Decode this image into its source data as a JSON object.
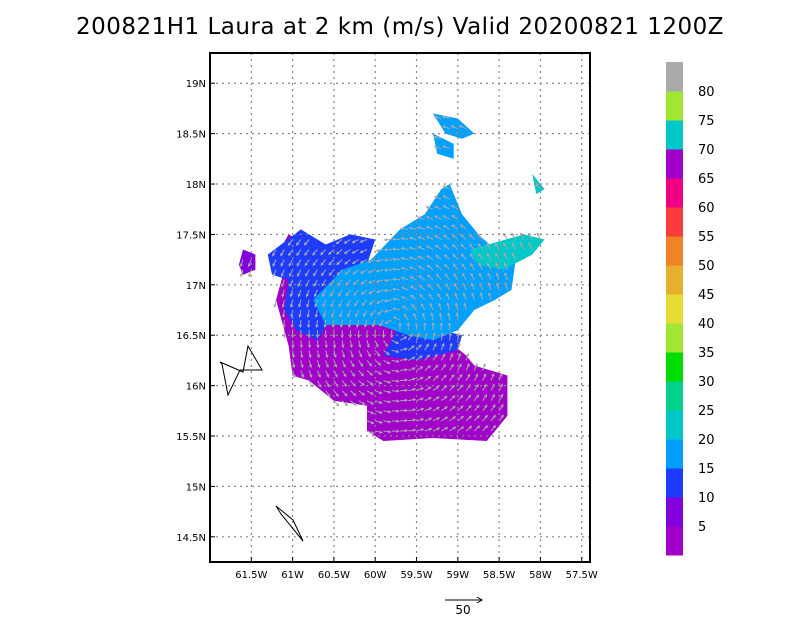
{
  "chart_data": {
    "type": "heatmap",
    "title": "200821H1 Laura at 2 km (m/s) Valid 20200821 1200Z",
    "x_ticks": [
      -61.5,
      -61,
      -60.5,
      -60,
      -59.5,
      -59,
      -58.5,
      -58,
      -57.5
    ],
    "x_tick_labels": [
      "61.5W",
      "61W",
      "60.5W",
      "60W",
      "59.5W",
      "59W",
      "58.5W",
      "58W",
      "57.5W"
    ],
    "y_ticks": [
      14.5,
      15,
      15.5,
      16,
      16.5,
      17,
      17.5,
      18,
      18.5,
      19
    ],
    "y_tick_labels": [
      "14.5N",
      "15N",
      "15.5N",
      "16N",
      "16.5N",
      "17N",
      "17.5N",
      "18N",
      "18.5N",
      "19N"
    ],
    "xlim": [
      -62.0,
      -57.4
    ],
    "ylim": [
      14.25,
      19.3
    ],
    "grid": true,
    "colorbar": {
      "levels": [
        5,
        10,
        15,
        20,
        25,
        30,
        35,
        40,
        45,
        50,
        55,
        60,
        65,
        70,
        75,
        80
      ],
      "labels": [
        "5",
        "10",
        "15",
        "20",
        "25",
        "30",
        "35",
        "40",
        "45",
        "50",
        "55",
        "60",
        "65",
        "70",
        "75",
        "80"
      ],
      "colors": [
        "#a000c8",
        "#8200dc",
        "#1e3cff",
        "#00a0ff",
        "#00c8c8",
        "#00d28c",
        "#00dc00",
        "#a0e632",
        "#e6dc32",
        "#e6af2d",
        "#f08228",
        "#fa3c3c",
        "#f00082",
        "#a000c8",
        "#00c8c8",
        "#a0e632",
        "#aaaaaa"
      ]
    },
    "wind_regions": [
      {
        "level": "<5",
        "color": "#a000c8",
        "polygon": [
          [
            -61.05,
            17.5
          ],
          [
            -60.7,
            17.35
          ],
          [
            -60.3,
            17.2
          ],
          [
            -59.7,
            16.9
          ],
          [
            -59.2,
            16.5
          ],
          [
            -58.9,
            16.3
          ],
          [
            -58.8,
            16.2
          ],
          [
            -58.4,
            16.1
          ],
          [
            -58.4,
            15.7
          ],
          [
            -58.55,
            15.55
          ],
          [
            -58.65,
            15.45
          ],
          [
            -59.3,
            15.48
          ],
          [
            -59.9,
            15.45
          ],
          [
            -60.1,
            15.55
          ],
          [
            -60.1,
            15.8
          ],
          [
            -60.5,
            15.85
          ],
          [
            -60.8,
            16.05
          ],
          [
            -61.0,
            16.1
          ],
          [
            -61.05,
            16.4
          ],
          [
            -61.15,
            16.7
          ],
          [
            -61.2,
            16.85
          ],
          [
            -61.1,
            17.15
          ],
          [
            -61.15,
            17.35
          ]
        ]
      },
      {
        "level": "5-10",
        "color": "#8200dc",
        "polygon": [
          [
            -61.6,
            17.35
          ],
          [
            -61.45,
            17.3
          ],
          [
            -61.45,
            17.15
          ],
          [
            -61.6,
            17.1
          ],
          [
            -61.65,
            17.2
          ]
        ]
      },
      {
        "level": "10-15",
        "color": "#1e3cff",
        "polygon": [
          [
            -61.3,
            17.3
          ],
          [
            -60.9,
            17.55
          ],
          [
            -60.6,
            17.4
          ],
          [
            -60.3,
            17.5
          ],
          [
            -60.0,
            17.45
          ],
          [
            -60.2,
            16.95
          ],
          [
            -60.55,
            16.65
          ],
          [
            -60.7,
            16.45
          ],
          [
            -60.95,
            16.55
          ],
          [
            -61.1,
            16.75
          ],
          [
            -61.05,
            17.05
          ],
          [
            -61.25,
            17.1
          ]
        ]
      },
      {
        "level": "10-15",
        "color": "#1e3cff",
        "polygon": [
          [
            -59.7,
            16.6
          ],
          [
            -59.2,
            16.55
          ],
          [
            -58.95,
            16.5
          ],
          [
            -59.0,
            16.35
          ],
          [
            -59.5,
            16.25
          ],
          [
            -59.9,
            16.3
          ]
        ]
      },
      {
        "level": "15-20",
        "color": "#00a0ff",
        "polygon": [
          [
            -60.75,
            16.85
          ],
          [
            -60.4,
            17.15
          ],
          [
            -60.05,
            17.25
          ],
          [
            -59.7,
            17.55
          ],
          [
            -59.4,
            17.7
          ],
          [
            -59.2,
            17.95
          ],
          [
            -59.1,
            18.0
          ],
          [
            -58.95,
            17.7
          ],
          [
            -58.75,
            17.5
          ],
          [
            -58.55,
            17.35
          ],
          [
            -58.3,
            17.25
          ],
          [
            -58.35,
            16.95
          ],
          [
            -58.55,
            16.85
          ],
          [
            -58.8,
            16.75
          ],
          [
            -59.0,
            16.55
          ],
          [
            -59.3,
            16.45
          ],
          [
            -59.6,
            16.5
          ],
          [
            -59.95,
            16.6
          ],
          [
            -60.3,
            16.6
          ],
          [
            -60.6,
            16.6
          ]
        ]
      },
      {
        "level": "15-20",
        "color": "#00a0ff",
        "polygon": [
          [
            -59.3,
            18.7
          ],
          [
            -59.0,
            18.65
          ],
          [
            -58.8,
            18.5
          ],
          [
            -58.95,
            18.45
          ],
          [
            -59.15,
            18.5
          ]
        ]
      },
      {
        "level": "15-20",
        "color": "#00a0ff",
        "polygon": [
          [
            -59.3,
            18.5
          ],
          [
            -59.05,
            18.4
          ],
          [
            -59.05,
            18.25
          ],
          [
            -59.25,
            18.3
          ]
        ]
      },
      {
        "level": "20-25",
        "color": "#00c8c8",
        "polygon": [
          [
            -58.85,
            17.35
          ],
          [
            -58.2,
            17.5
          ],
          [
            -57.95,
            17.45
          ],
          [
            -58.1,
            17.3
          ],
          [
            -58.45,
            17.15
          ],
          [
            -58.75,
            17.2
          ]
        ]
      },
      {
        "level": "20-25",
        "color": "#00c8c8",
        "polygon": [
          [
            -58.1,
            18.1
          ],
          [
            -58.0,
            18.0
          ],
          [
            -57.95,
            17.95
          ],
          [
            -58.05,
            17.9
          ]
        ]
      }
    ],
    "reference_vector": {
      "label": "50",
      "value": 50,
      "units": "m/s"
    }
  }
}
